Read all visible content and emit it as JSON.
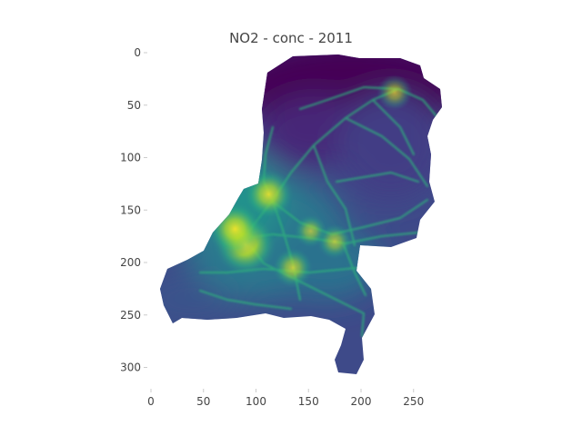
{
  "chart_data": {
    "type": "heatmap",
    "title": "NO2 - conc - 2011",
    "xlabel": "",
    "ylabel": "",
    "xlim": [
      0,
      280
    ],
    "ylim": [
      320,
      0
    ],
    "x_ticks": [
      0,
      50,
      100,
      150,
      200,
      250
    ],
    "y_ticks": [
      0,
      50,
      100,
      150,
      200,
      250,
      300
    ],
    "colormap": "viridis",
    "grid": false,
    "legend": "none",
    "hotspots": [
      {
        "x": 90,
        "y": 183,
        "intensity": 1.0
      },
      {
        "x": 80,
        "y": 168,
        "intensity": 0.85
      },
      {
        "x": 112,
        "y": 135,
        "intensity": 0.75
      },
      {
        "x": 135,
        "y": 205,
        "intensity": 0.55
      },
      {
        "x": 175,
        "y": 180,
        "intensity": 0.45
      },
      {
        "x": 232,
        "y": 38,
        "intensity": 0.45
      },
      {
        "x": 152,
        "y": 170,
        "intensity": 0.4
      }
    ]
  },
  "colors": {
    "background": "#ffffff",
    "low": "#440154",
    "mid": "#3b528b",
    "high": "#fde725",
    "road": "#2fb47c"
  }
}
